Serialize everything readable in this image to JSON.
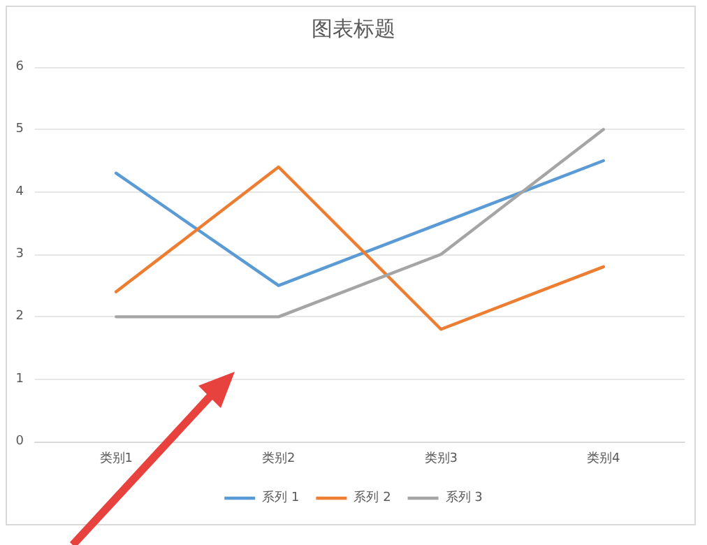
{
  "chart_data": {
    "type": "line",
    "title": "图表标题",
    "categories": [
      "类别1",
      "类别2",
      "类别3",
      "类别4"
    ],
    "series": [
      {
        "name": "系列 1",
        "color": "#5b9bd5",
        "values": [
          4.3,
          2.5,
          3.5,
          4.5
        ]
      },
      {
        "name": "系列 2",
        "color": "#ed7d31",
        "values": [
          2.4,
          4.4,
          1.8,
          2.8
        ]
      },
      {
        "name": "系列 3",
        "color": "#a5a5a5",
        "values": [
          2,
          2,
          3,
          5
        ]
      }
    ],
    "ylim": [
      0,
      6
    ],
    "yticks": [
      0,
      1,
      2,
      3,
      4,
      5,
      6
    ],
    "grid": "y",
    "legend": "bottom",
    "marker": "none",
    "line_style": "solid"
  }
}
